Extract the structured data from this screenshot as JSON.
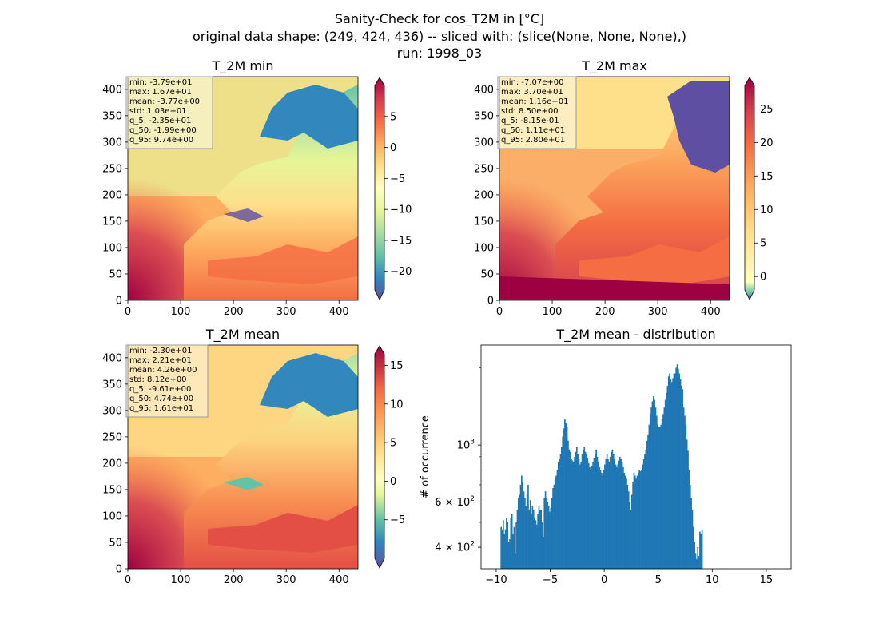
{
  "figure": {
    "title_lines": [
      "Sanity-Check for cos_T2M in [°C]",
      "original data shape: (249, 424, 436) -- sliced with: (slice(None, None, None),)",
      "run: 1998_03"
    ]
  },
  "chart_data": [
    {
      "type": "heatmap",
      "title": "T_2M min",
      "colormap": "Spectral_r",
      "xlim": [
        0,
        436
      ],
      "ylim": [
        0,
        424
      ],
      "xticks": [
        0,
        100,
        200,
        300,
        400
      ],
      "yticks": [
        0,
        50,
        100,
        150,
        200,
        250,
        300,
        350,
        400
      ],
      "colorbar": {
        "range": [
          -23,
          10
        ],
        "ticks": [
          5,
          0,
          -5,
          -10,
          -15,
          -20
        ],
        "tick_labels": [
          "5",
          "0",
          "−5",
          "−10",
          "−15",
          "−20"
        ]
      },
      "stats": [
        "min: -3.79e+01",
        "max: 1.67e+01",
        "mean: -3.77e+00",
        "std: 1.03e+01",
        "q_5: -2.35e+01",
        "q_50: -1.99e+00",
        "q_95: 9.74e+00"
      ]
    },
    {
      "type": "heatmap",
      "title": "T_2M max",
      "colormap": "Spectral_r",
      "xlim": [
        0,
        436
      ],
      "ylim": [
        0,
        424
      ],
      "xticks": [
        0,
        100,
        200,
        300,
        400
      ],
      "yticks": [
        0,
        50,
        100,
        150,
        200,
        250,
        300,
        350,
        400
      ],
      "colorbar": {
        "range": [
          -2,
          28.5
        ],
        "ticks": [
          25,
          20,
          15,
          10,
          5,
          0
        ],
        "tick_labels": [
          "25",
          "20",
          "15",
          "10",
          "5",
          "0"
        ]
      },
      "stats": [
        "min: -7.07e+00",
        "max: 3.70e+01",
        "mean: 1.16e+01",
        "std: 8.50e+00",
        "q_5: -8.15e-01",
        "q_50: 1.11e+01",
        "q_95: 2.80e+01"
      ]
    },
    {
      "type": "heatmap",
      "title": "T_2M mean",
      "colormap": "Spectral_r",
      "xlim": [
        0,
        436
      ],
      "ylim": [
        0,
        424
      ],
      "xticks": [
        0,
        100,
        200,
        300,
        400
      ],
      "yticks": [
        0,
        50,
        100,
        150,
        200,
        250,
        300,
        350,
        400
      ],
      "colorbar": {
        "range": [
          -10,
          16.5
        ],
        "ticks": [
          15,
          10,
          5,
          0,
          -5
        ],
        "tick_labels": [
          "15",
          "10",
          "5",
          "0",
          "−5"
        ]
      },
      "stats": [
        "min: -2.30e+01",
        "max: 2.21e+01",
        "mean: 4.26e+00",
        "std: 8.12e+00",
        "q_5: -9.61e+00",
        "q_50: 4.74e+00",
        "q_95: 1.61e+01"
      ]
    },
    {
      "type": "bar",
      "title": "T_2M mean - distribution",
      "ylabel": "# of occurrence",
      "yscale": "log",
      "xlim": [
        -11.4,
        17.3
      ],
      "ylim": [
        330,
        2450
      ],
      "xticks": [
        -10,
        -5,
        0,
        5,
        10,
        15
      ],
      "xtick_labels": [
        "−10",
        "−5",
        "0",
        "5",
        "10",
        "15"
      ],
      "ytick_labels": {
        "1000": [
          "10",
          "3"
        ],
        "600": [
          "6 × 10",
          "2"
        ],
        "400": [
          "4 × 10",
          "2"
        ]
      },
      "bin_start": -9.6,
      "bin_width": 0.1,
      "color": "#1f77b4",
      "values": [
        480,
        470,
        510,
        450,
        470,
        520,
        500,
        420,
        430,
        520,
        540,
        450,
        480,
        380,
        500,
        560,
        620,
        640,
        700,
        760,
        720,
        660,
        620,
        580,
        640,
        700,
        560,
        610,
        540,
        580,
        560,
        520,
        510,
        490,
        540,
        580,
        560,
        560,
        500,
        440,
        620,
        660,
        620,
        600,
        580,
        550,
        570,
        620,
        680,
        700,
        740,
        760,
        800,
        860,
        880,
        920,
        980,
        1080,
        1160,
        1260,
        1220,
        1180,
        1040,
        960,
        940,
        880,
        870,
        860,
        900,
        940,
        980,
        920,
        880,
        840,
        860,
        920,
        960,
        980,
        940,
        920,
        890,
        850,
        820,
        800,
        830,
        860,
        890,
        920,
        960,
        900,
        860,
        820,
        800,
        780,
        760,
        800,
        840,
        880,
        920,
        880,
        860,
        900,
        940,
        960,
        920,
        880,
        840,
        820,
        840,
        870,
        900,
        880,
        860,
        820,
        780,
        760,
        740,
        700,
        660,
        600,
        560,
        640,
        720,
        780,
        760,
        740,
        760,
        780,
        800,
        790,
        800,
        840,
        880,
        920,
        960,
        1040,
        1100,
        1200,
        1320,
        1400,
        1480,
        1550,
        1500,
        1400,
        1300,
        1200,
        1180,
        1180,
        1200,
        1260,
        1320,
        1400,
        1500,
        1600,
        1700,
        1850,
        1900,
        1800,
        1760,
        1820,
        1900,
        1900,
        2000,
        2060,
        1980,
        1900,
        1800,
        1700,
        1650,
        1400,
        1300,
        1200,
        1050,
        950,
        800,
        700,
        620,
        560,
        480,
        420,
        380,
        360,
        400,
        370,
        460,
        450,
        470
      ]
    }
  ]
}
